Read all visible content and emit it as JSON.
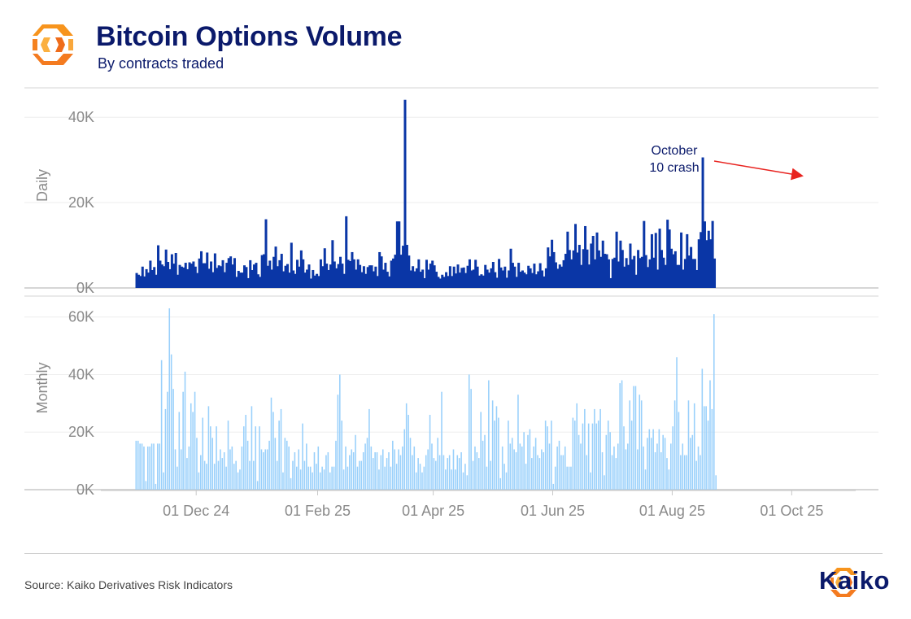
{
  "header": {
    "title": "Bitcoin Options Volume",
    "subtitle": "By contracts traded"
  },
  "footer": {
    "source": "Source: Kaiko Derivatives Risk Indicators",
    "brand": "Kaiko"
  },
  "colors": {
    "title": "#0b1a6b",
    "daily_bars": "#0a36a6",
    "monthly_bars": "#99d0fb",
    "annotation_arrow": "#e8231f",
    "logo_orange": "#f7941d"
  },
  "icons": [
    "kaiko-logo-icon",
    "kaiko-brand-icon"
  ],
  "chart_data": [
    {
      "type": "bar",
      "name": "daily",
      "ylabel": "Daily",
      "ylim": [
        0,
        45000
      ],
      "yticks": [
        0,
        20000,
        40000
      ],
      "ytick_labels": [
        "0K",
        "20K",
        "40K"
      ],
      "xlim": [
        "2024-10-15",
        "2025-11-01"
      ],
      "xticks": [
        "2024-12-01",
        "2025-02-01",
        "2025-04-01",
        "2025-06-01",
        "2025-08-01",
        "2025-10-01"
      ],
      "xtick_labels": [
        "01 Dec 24",
        "01 Feb 25",
        "01 Apr 25",
        "01 Jun 25",
        "01 Aug 25",
        "01 Oct 25"
      ],
      "start": "2024-10-31",
      "grid": "horizontal",
      "annotation": {
        "text": "October 10 crash",
        "lines": [
          "October",
          "10 crash"
        ],
        "date": "2025-10-10",
        "value": 30600
      },
      "values": [
        3500,
        3100,
        2800,
        5000,
        2700,
        4400,
        3600,
        6400,
        4200,
        4900,
        3100,
        10000,
        6400,
        5500,
        5100,
        9000,
        6100,
        4400,
        7900,
        5700,
        8200,
        3100,
        5400,
        5000,
        4800,
        5900,
        4400,
        6000,
        5700,
        6200,
        5000,
        3500,
        6900,
        8600,
        5800,
        5800,
        8300,
        4500,
        6200,
        3700,
        8100,
        4700,
        5300,
        5100,
        6500,
        3700,
        5900,
        7000,
        7400,
        5500,
        7000,
        2600,
        4000,
        3600,
        3600,
        5300,
        4900,
        2300,
        6500,
        4200,
        5500,
        5900,
        3200,
        2600,
        7700,
        7900,
        16100,
        5200,
        6400,
        4300,
        7300,
        9700,
        5100,
        6500,
        8000,
        3900,
        5200,
        5600,
        3600,
        10600,
        4100,
        3300,
        6600,
        5000,
        8800,
        6700,
        3600,
        4300,
        5500,
        2200,
        4200,
        2900,
        3300,
        2800,
        6700,
        5100,
        9300,
        5700,
        4200,
        5500,
        11200,
        6200,
        4600,
        5600,
        7300,
        5700,
        3300,
        16800,
        6600,
        6300,
        8400,
        6700,
        4300,
        6700,
        5400,
        3700,
        5100,
        3300,
        4900,
        5300,
        5300,
        3900,
        5000,
        2800,
        8400,
        7400,
        4300,
        5900,
        3800,
        2700,
        6400,
        6900,
        7800,
        15600,
        15600,
        7800,
        9900,
        44100,
        10100,
        7600,
        4100,
        5100,
        3900,
        4600,
        6700,
        3800,
        4300,
        2300,
        6600,
        4300,
        5700,
        6400,
        5300,
        3800,
        2600,
        2200,
        3100,
        2600,
        3700,
        2800,
        5100,
        2800,
        5000,
        3400,
        5500,
        3600,
        4700,
        4800,
        3500,
        5200,
        6700,
        4100,
        4300,
        6600,
        5000,
        2900,
        3200,
        2900,
        5400,
        4300,
        3600,
        4600,
        6100,
        3700,
        2400,
        6800,
        4800,
        4100,
        5000,
        2400,
        4100,
        9200,
        5900,
        5000,
        2600,
        5900,
        3800,
        4100,
        3600,
        3200,
        5200,
        4600,
        3500,
        5700,
        3200,
        3900,
        5800,
        4100,
        2700,
        4600,
        9500,
        7400,
        11300,
        8400,
        6000,
        4500,
        5500,
        5000,
        6500,
        8000,
        13200,
        8900,
        6700,
        8800,
        15000,
        8300,
        10100,
        5400,
        9100,
        14500,
        9000,
        5500,
        10400,
        12200,
        6700,
        13000,
        8800,
        7300,
        11100,
        8000,
        7900,
        6700,
        2300,
        6800,
        7100,
        13200,
        6200,
        11100,
        8900,
        5000,
        7000,
        5400,
        10400,
        6700,
        7500,
        3100,
        8900,
        7000,
        7300,
        15700,
        7700,
        4900,
        6700,
        12600,
        7100,
        12900,
        4300,
        13900,
        8900,
        7100,
        5400,
        16000,
        13700,
        9200,
        7900,
        8600,
        5400,
        5400,
        13000,
        4300,
        6800,
        12600,
        7600,
        9600,
        6800,
        6800,
        4200,
        11400,
        13100,
        30600,
        15600,
        11200,
        13400,
        11400,
        15700,
        6900
      ]
    },
    {
      "type": "bar",
      "name": "monthly",
      "ylabel": "Monthly",
      "ylim": [
        0,
        65000
      ],
      "yticks": [
        0,
        20000,
        40000,
        60000
      ],
      "ytick_labels": [
        "0K",
        "20K",
        "40K",
        "60K"
      ],
      "xlim": [
        "2024-10-15",
        "2025-11-01"
      ],
      "start": "2024-10-31",
      "grid": "horizontal",
      "values": [
        17000,
        17000,
        16000,
        16000,
        15000,
        3000,
        15000,
        15000,
        16000,
        16000,
        2000,
        16000,
        16000,
        45000,
        6000,
        28000,
        34000,
        63000,
        47000,
        35000,
        14000,
        8000,
        27000,
        14000,
        34000,
        41000,
        11000,
        15000,
        30000,
        27000,
        34000,
        18000,
        6000,
        12000,
        25000,
        10000,
        9000,
        29000,
        22000,
        18000,
        9000,
        22000,
        10000,
        14000,
        11000,
        13000,
        8000,
        24000,
        14000,
        15000,
        9000,
        10000,
        6000,
        7000,
        15000,
        22000,
        26000,
        17000,
        10000,
        29000,
        10000,
        22000,
        3000,
        22000,
        14000,
        13000,
        14000,
        14000,
        17000,
        32000,
        27000,
        18000,
        10000,
        24000,
        28000,
        6000,
        18000,
        17000,
        15000,
        4000,
        10000,
        13000,
        8000,
        14000,
        7000,
        23000,
        10000,
        16000,
        8000,
        8000,
        6000,
        13000,
        9000,
        15000,
        6000,
        8000,
        7000,
        12000,
        13000,
        6000,
        8000,
        8000,
        17000,
        33000,
        40000,
        24000,
        7000,
        15000,
        8000,
        12000,
        14000,
        13000,
        19000,
        8000,
        10000,
        10000,
        13000,
        16000,
        18000,
        28000,
        15000,
        11000,
        13000,
        13000,
        7000,
        12000,
        14000,
        8000,
        11000,
        13000,
        8000,
        17000,
        14000,
        9000,
        14000,
        12000,
        15000,
        21000,
        30000,
        26000,
        18000,
        12000,
        15000,
        6000,
        11000,
        9000,
        6000,
        8000,
        12000,
        14000,
        26000,
        16000,
        11000,
        10000,
        18000,
        12000,
        34000,
        12000,
        7000,
        11000,
        12000,
        7000,
        14000,
        7000,
        12000,
        11000,
        13000,
        6000,
        9000,
        5000,
        40000,
        35000,
        10000,
        15000,
        13000,
        11000,
        27000,
        17000,
        19000,
        8000,
        38000,
        10000,
        31000,
        24000,
        29000,
        25000,
        4000,
        15000,
        9000,
        6000,
        24000,
        16000,
        18000,
        14000,
        13000,
        33000,
        16000,
        15000,
        20000,
        9000,
        19000,
        21000,
        11000,
        15000,
        18000,
        12000,
        11000,
        14000,
        13000,
        24000,
        22000,
        16000,
        24000,
        2000,
        8000,
        15000,
        17000,
        12000,
        12000,
        15000,
        8000,
        8000,
        8000,
        25000,
        24000,
        30000,
        19000,
        16000,
        23000,
        28000,
        12000,
        23000,
        6000,
        23000,
        28000,
        23000,
        24000,
        28000,
        13000,
        5000,
        19000,
        24000,
        20000,
        12000,
        15000,
        11000,
        16000,
        37000,
        38000,
        22000,
        14000,
        16000,
        31000,
        24000,
        36000,
        36000,
        14000,
        33000,
        31000,
        15000,
        7000,
        18000,
        21000,
        18000,
        21000,
        13000,
        16000,
        21000,
        13000,
        19000,
        18000,
        11000,
        7000,
        16000,
        22000,
        31000,
        46000,
        27000,
        12000,
        16000,
        12000,
        12000,
        31000,
        18000,
        19000,
        30000,
        10000,
        15000,
        12000,
        42000,
        29000,
        29000,
        24000,
        38000,
        28000,
        61000,
        5000
      ]
    }
  ]
}
